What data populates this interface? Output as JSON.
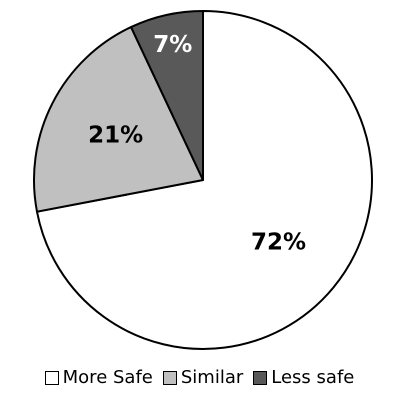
{
  "chart_data": {
    "type": "pie",
    "start_angle_deg": 0,
    "direction": "clockwise",
    "slices": [
      {
        "label": "More Safe",
        "value": 72,
        "display": "72%",
        "color": "#ffffff"
      },
      {
        "label": "Similar",
        "value": 21,
        "display": "21%",
        "color": "#c0c0c0"
      },
      {
        "label": "Less safe",
        "value": 7,
        "display": "7%",
        "color": "#595959"
      }
    ],
    "legend_position": "bottom",
    "edge_color": "#000000"
  }
}
